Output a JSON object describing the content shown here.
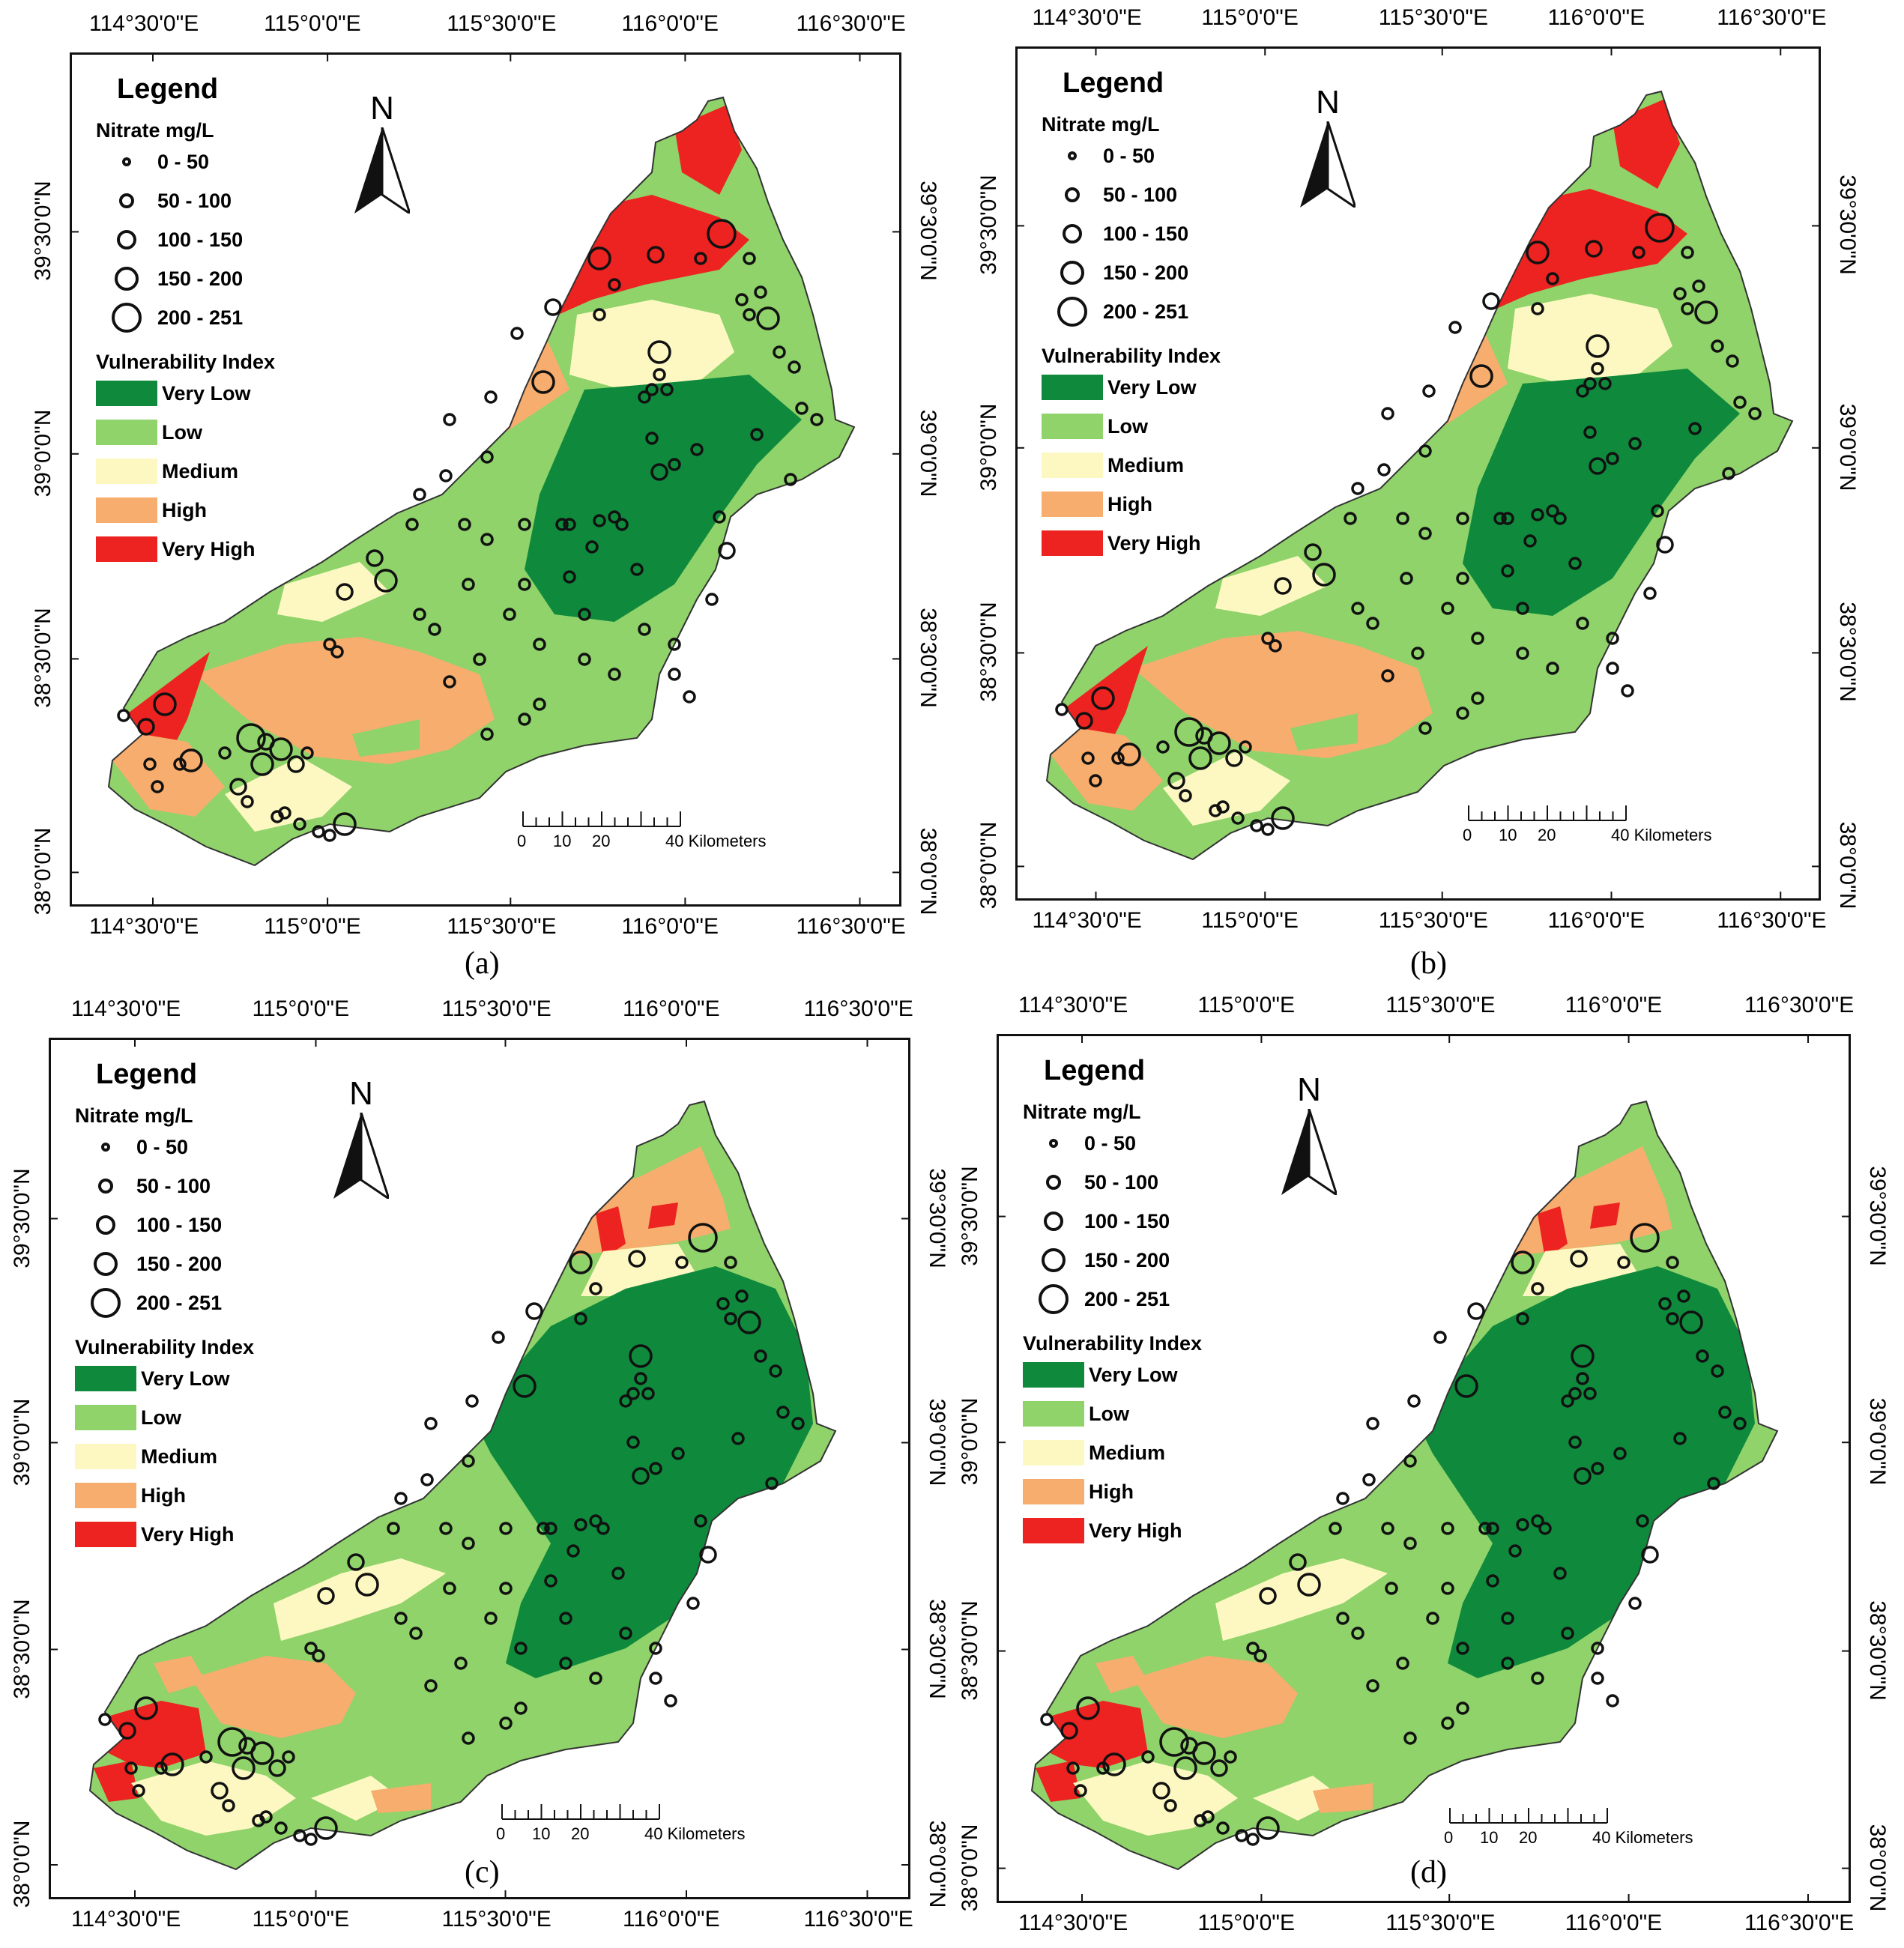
{
  "figure": {
    "panels": [
      {
        "id": "a",
        "caption": "(a)"
      },
      {
        "id": "b",
        "caption": "(b)"
      },
      {
        "id": "c",
        "caption": "(c)"
      },
      {
        "id": "d",
        "caption": "(d)"
      }
    ],
    "top_longitudes": [
      "114°30'0\"E",
      "115°0'0\"E",
      "115°30'0\"E",
      "116°0'0\"E",
      "116°30'0\"E"
    ],
    "bottom_longitudes": [
      "114°30'0\"E",
      "115°0'0\"E",
      "115°30'0\"E",
      "116°0'0\"E",
      "116°30'0\"E"
    ],
    "latitudes": [
      "39°30'0\"N",
      "39°0'0\"N",
      "38°30'0\"N",
      "38°0'0\"N"
    ],
    "legend": {
      "title": "Legend",
      "nitrate_title": "Nitrate mg/L",
      "nitrate_classes": [
        "0 - 50",
        "50 - 100",
        "100 - 150",
        "150 - 200",
        "200 - 251"
      ],
      "vulnerability_title": "Vulnerability Index",
      "vulnerability_classes": [
        {
          "label": "Very Low",
          "color": "#0f8a3c"
        },
        {
          "label": "Low",
          "color": "#8fd36a"
        },
        {
          "label": "Medium",
          "color": "#fdf8c2"
        },
        {
          "label": "High",
          "color": "#f7ad6d"
        },
        {
          "label": "Very High",
          "color": "#ec2320"
        }
      ]
    },
    "north_label": "N",
    "scale": {
      "ticks": [
        "0",
        "10",
        "20",
        "40 Kilometers"
      ]
    }
  }
}
